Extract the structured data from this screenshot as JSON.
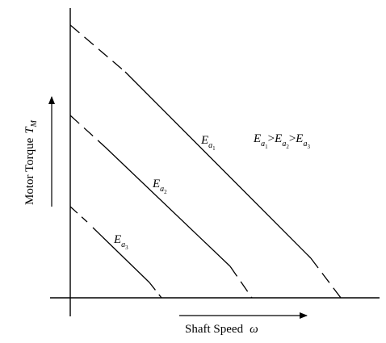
{
  "chart_data": {
    "type": "line",
    "xlabel": "Shaft Speed",
    "xlabel_symbol": "ω",
    "ylabel": "Motor Torque",
    "ylabel_symbol": "T",
    "ylabel_symbol_sub": "M",
    "relation": {
      "prefix": "E",
      "sub1": "a",
      "subsub1": "1",
      "gt1": ">",
      "sub2": "a",
      "subsub2": "2",
      "gt2": ">",
      "sub3": "a",
      "subsub3": "3"
    },
    "series": [
      {
        "name": "E",
        "sub": "a",
        "subsub": "1"
      },
      {
        "name": "E",
        "sub": "a",
        "subsub": "2"
      },
      {
        "name": "E",
        "sub": "a",
        "subsub": "3"
      }
    ]
  }
}
